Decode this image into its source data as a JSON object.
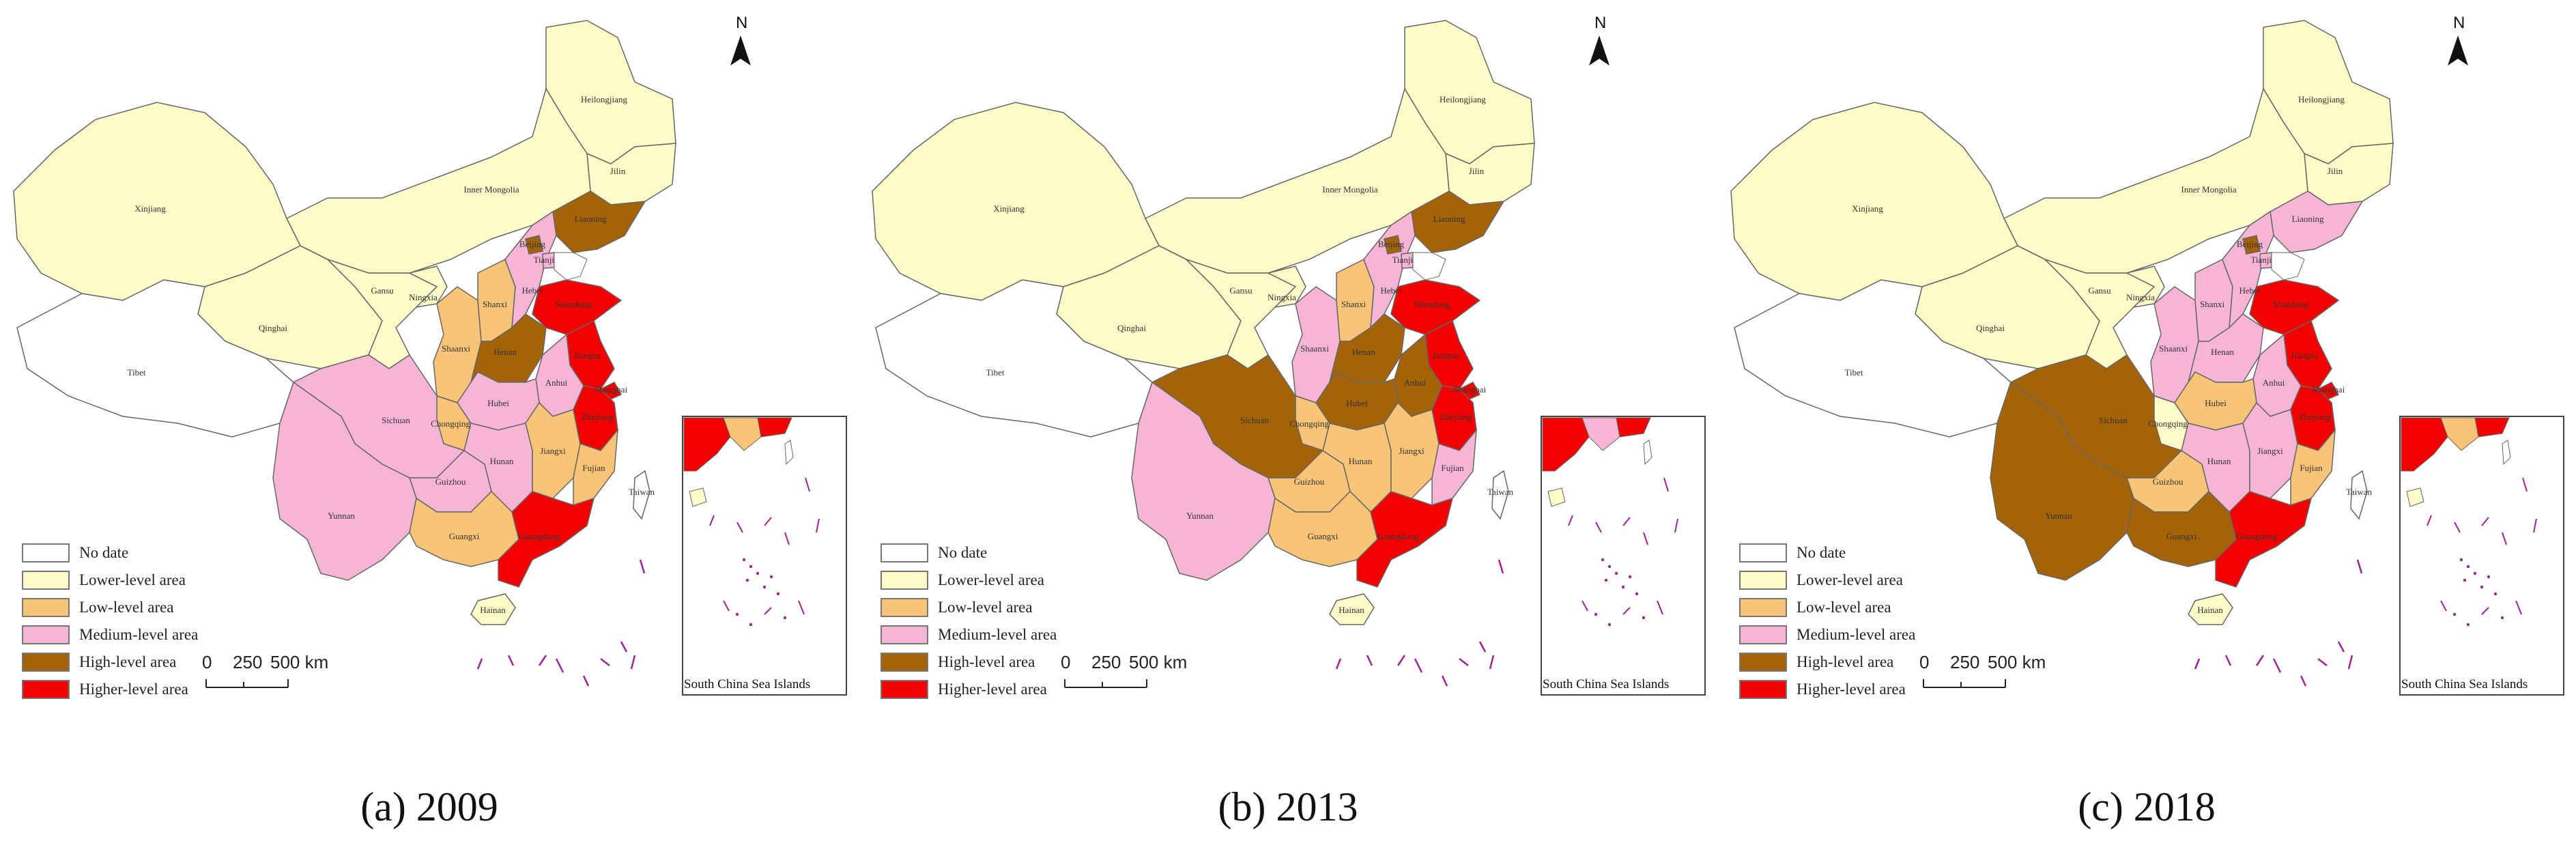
{
  "colors": {
    "no_data": "#ffffff",
    "lower": "#fdfbc8",
    "low": "#f8c477",
    "medium": "#f7b5d5",
    "high": "#a46306",
    "higher": "#f40000",
    "border": "#666666"
  },
  "legend": {
    "items": [
      {
        "label": "No date",
        "level": "no_data"
      },
      {
        "label": "Lower-level area",
        "level": "lower"
      },
      {
        "label": "Low-level area",
        "level": "low"
      },
      {
        "label": "Medium-level area",
        "level": "medium"
      },
      {
        "label": "High-level area",
        "level": "high"
      },
      {
        "label": "Higher-level area",
        "level": "higher"
      }
    ]
  },
  "scale": {
    "ticks": [
      "0",
      "250",
      "500 km"
    ]
  },
  "north_label": "N",
  "inset_title": "South China Sea Islands",
  "province_labels": [
    "Heilongjiang",
    "Jilin",
    "Liaoning",
    "Inner Mongolia",
    "Xinjiang",
    "Qinghai",
    "Tibet",
    "Gansu",
    "Ningxia",
    "Shaanxi",
    "Shanxi",
    "Hebei",
    "Beijing",
    "Tianjin",
    "Shandong",
    "Henan",
    "Jiangsu",
    "Anhui",
    "Shanghai",
    "Hubei",
    "Sichuan",
    "Chongqing",
    "Guizhou",
    "Hunan",
    "Jiangxi",
    "Zhejiang",
    "Fujian",
    "Yunnan",
    "Guangxi",
    "Guangdong",
    "Hainan",
    "Taiwan"
  ],
  "maps": [
    {
      "caption": "(a) 2009",
      "levels": {
        "Heilongjiang": "lower",
        "Jilin": "lower",
        "Liaoning": "high",
        "Inner Mongolia": "lower",
        "Xinjiang": "lower",
        "Qinghai": "lower",
        "Tibet": "no_data",
        "Gansu": "lower",
        "Ningxia": "lower",
        "Shaanxi": "low",
        "Shanxi": "low",
        "Hebei": "medium",
        "Beijing": "high",
        "Tianjin": "medium",
        "Shandong": "higher",
        "Henan": "high",
        "Jiangsu": "higher",
        "Anhui": "medium",
        "Shanghai": "higher",
        "Hubei": "medium",
        "Sichuan": "medium",
        "Chongqing": "low",
        "Guizhou": "medium",
        "Hunan": "medium",
        "Jiangxi": "low",
        "Zhejiang": "higher",
        "Fujian": "low",
        "Yunnan": "medium",
        "Guangxi": "low",
        "Guangdong": "higher",
        "Hainan": "lower",
        "Taiwan": "no_data"
      }
    },
    {
      "caption": "(b) 2013",
      "levels": {
        "Heilongjiang": "lower",
        "Jilin": "lower",
        "Liaoning": "high",
        "Inner Mongolia": "lower",
        "Xinjiang": "lower",
        "Qinghai": "lower",
        "Tibet": "no_data",
        "Gansu": "lower",
        "Ningxia": "lower",
        "Shaanxi": "medium",
        "Shanxi": "low",
        "Hebei": "medium",
        "Beijing": "high",
        "Tianjin": "medium",
        "Shandong": "higher",
        "Henan": "high",
        "Jiangsu": "higher",
        "Anhui": "high",
        "Shanghai": "higher",
        "Hubei": "high",
        "Sichuan": "high",
        "Chongqing": "low",
        "Guizhou": "low",
        "Hunan": "low",
        "Jiangxi": "low",
        "Zhejiang": "higher",
        "Fujian": "medium",
        "Yunnan": "medium",
        "Guangxi": "low",
        "Guangdong": "higher",
        "Hainan": "lower",
        "Taiwan": "no_data"
      }
    },
    {
      "caption": "(c) 2018",
      "levels": {
        "Heilongjiang": "lower",
        "Jilin": "lower",
        "Liaoning": "medium",
        "Inner Mongolia": "lower",
        "Xinjiang": "lower",
        "Qinghai": "lower",
        "Tibet": "no_data",
        "Gansu": "lower",
        "Ningxia": "lower",
        "Shaanxi": "medium",
        "Shanxi": "medium",
        "Hebei": "medium",
        "Beijing": "high",
        "Tianjin": "medium",
        "Shandong": "higher",
        "Henan": "medium",
        "Jiangsu": "higher",
        "Anhui": "medium",
        "Shanghai": "higher",
        "Hubei": "low",
        "Sichuan": "high",
        "Chongqing": "lower",
        "Guizhou": "low",
        "Hunan": "medium",
        "Jiangxi": "medium",
        "Zhejiang": "higher",
        "Fujian": "low",
        "Yunnan": "high",
        "Guangxi": "high",
        "Guangdong": "higher",
        "Hainan": "lower",
        "Taiwan": "no_data"
      }
    }
  ]
}
